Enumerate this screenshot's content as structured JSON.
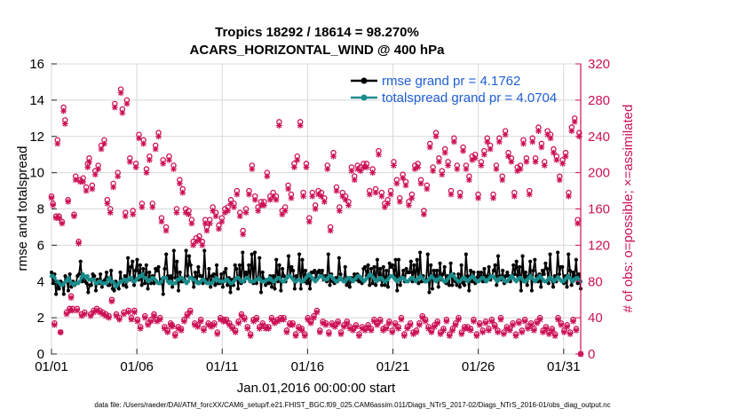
{
  "chart_data": {
    "type": "line",
    "title": "Tropics 18292 / 18614 = 98.270%",
    "subtitle": "ACARS_HORIZONTAL_WIND @ 400 hPa",
    "xlabel": "Jan.01,2016 00:00:00 start",
    "ylabel_left": "rmse and totalspread",
    "ylabel_right": "# of obs: o=possible; ×=assimilated",
    "xlim": [
      0,
      31
    ],
    "ylim_left": [
      0,
      16
    ],
    "ylim_right": [
      0,
      320
    ],
    "x_tick_values": [
      0,
      5,
      10,
      15,
      20,
      25,
      30
    ],
    "x_tick_labels": [
      "01/01",
      "01/06",
      "01/11",
      "01/16",
      "01/21",
      "01/26",
      "01/31"
    ],
    "y_left_ticks": [
      0,
      2,
      4,
      6,
      8,
      10,
      12,
      14,
      16
    ],
    "y_right_ticks": [
      0,
      40,
      80,
      120,
      160,
      200,
      240,
      280,
      320
    ],
    "legend": [
      "rmse grand pr = 4.1762",
      "totalspread grand pr = 4.0704"
    ],
    "colors": {
      "rmse": "#000000",
      "spread": "#1a8c8c",
      "obs": "#cc1155",
      "legend_text": "#1f5fd6"
    },
    "series": [
      {
        "name": "rmse",
        "values": [
          4.5,
          3.9,
          4.4,
          3.3,
          3.9,
          3.6,
          4.0,
          3.9,
          3.3,
          4.3,
          4.1,
          3.5,
          4.4,
          3.7,
          4.0,
          3.8,
          3.9,
          4.3,
          4.4,
          5.1,
          4.0,
          4.3,
          4.0,
          3.9,
          3.4,
          3.8,
          3.8,
          4.4,
          4.3,
          3.5,
          4.1,
          3.9,
          4.4,
          3.7,
          4.0,
          4.1,
          4.5,
          3.8,
          3.8,
          4.6,
          3.6,
          3.5,
          4.0,
          3.8,
          3.6,
          4.5,
          4.0,
          3.8,
          4.3,
          3.7,
          5.3,
          4.1,
          4.8,
          5.1,
          3.8,
          4.6,
          5.2,
          4.1,
          4.9,
          3.8,
          4.7,
          3.9,
          4.9,
          3.6,
          4.5,
          3.9,
          4.3,
          3.9,
          4.7,
          4.6,
          4.8,
          3.9,
          4.1,
          3.3,
          4.7,
          5.5,
          4.3,
          4.1,
          4.3,
          3.7,
          5.7,
          4.2,
          5.1,
          3.5,
          4.5,
          4.0,
          4.0,
          4.1,
          5.7,
          4.3,
          5.4,
          4.9,
          4.2,
          3.7,
          4.5,
          4.0,
          4.8,
          4.3,
          4.3,
          3.9,
          5.7,
          4.1,
          3.9,
          4.7,
          3.7,
          4.3,
          4.4,
          3.8,
          4.9,
          3.9,
          3.9,
          4.4,
          3.7,
          4.5,
          4.7,
          3.8,
          4.2,
          3.4,
          4.1,
          3.8,
          4.9,
          4.7,
          3.6,
          4.9,
          3.9,
          5.6,
          4.0,
          4.5,
          4.2,
          4.9,
          4.0,
          5.5,
          3.9,
          5.6,
          3.9,
          4.2,
          5.3,
          3.4,
          4.5,
          4.1,
          3.8,
          4.1,
          3.9,
          4.3,
          3.7,
          4.3,
          3.6,
          5.2,
          4.0,
          4.9,
          3.5,
          4.7,
          4.3,
          4.0,
          4.2,
          5.4,
          4.3,
          4.8,
          4.6,
          3.6,
          4.3,
          4.1,
          5.5,
          3.6,
          5.2,
          4.0,
          4.6,
          3.9,
          4.2,
          3.6,
          4.5,
          4.5,
          4.6,
          4.2,
          4.5,
          4.6,
          4.3,
          4.6,
          4.1,
          4.3,
          4.0,
          5.5,
          3.8,
          4.4,
          4.0,
          3.9,
          4.2,
          4.0,
          5.3,
          4.4,
          4.1,
          4.0,
          4.8,
          3.8,
          4.1,
          3.7,
          4.2,
          4.1,
          4.4,
          4.1,
          4.4,
          4.0,
          4.0,
          3.9,
          4.7,
          4.8,
          4.3,
          4.9,
          3.8,
          4.7,
          3.9,
          4.8,
          3.8,
          5.2,
          4.1,
          4.7,
          3.8,
          4.8,
          3.8,
          4.6,
          3.7,
          5.0,
          4.8,
          4.9,
          4.3,
          5.2,
          3.5,
          5.2,
          3.8,
          4.2,
          4.6,
          4.0,
          4.7,
          4.5,
          4.5,
          5.1,
          4.0,
          4.9,
          4.1,
          5.2,
          3.9,
          5.6,
          4.0,
          4.3,
          4.0,
          4.1,
          5.5,
          3.4,
          4.9,
          3.6,
          4.6,
          4.1,
          4.6,
          3.7,
          5.0,
          4.1,
          4.4,
          4.8,
          3.9,
          4.3,
          3.8,
          5.0,
          3.8,
          4.4,
          4.0,
          3.8,
          4.4,
          3.7,
          4.9,
          3.9,
          3.8,
          5.5,
          4.3,
          3.5,
          4.6,
          4.0,
          4.5,
          3.9,
          4.2,
          4.5,
          4.2,
          4.5,
          4.0,
          4.7,
          4.0,
          4.3,
          4.8,
          4.1,
          4.3,
          4.6,
          4.9,
          3.8,
          5.4,
          4.3,
          4.1,
          4.6,
          3.9,
          4.3,
          4.5,
          4.3,
          4.0,
          4.3,
          4.9,
          4.4,
          5.1,
          4.3,
          4.8,
          3.5,
          5.4,
          4.0,
          4.5,
          3.8,
          4.3,
          5.1,
          3.5,
          4.6,
          5.2,
          4.3,
          4.0,
          4.4,
          3.7,
          4.6,
          4.4,
          5.0,
          4.7,
          3.9,
          5.5,
          4.1,
          3.7,
          4.3,
          4.0,
          5.6,
          4.4,
          4.8,
          4.8,
          3.9,
          4.3,
          3.7,
          5.5,
          4.6,
          3.8,
          4.5,
          4.3,
          5.2,
          3.9,
          4.4,
          3.6
        ]
      },
      {
        "name": "totalspread",
        "values": [
          4.3,
          4.3,
          4.2,
          4.0,
          4.0,
          3.9,
          3.8,
          3.8,
          3.9,
          4.0,
          4.1,
          4.2,
          4.0,
          3.9,
          3.8,
          3.9,
          3.9,
          3.9,
          4.0,
          4.2,
          4.4,
          4.3,
          4.2,
          4.3,
          4.1,
          4.1,
          4.1,
          4.1,
          3.9,
          3.9,
          4.0,
          4.0,
          3.9,
          3.9,
          3.9,
          3.9,
          4.1,
          4.2,
          4.0,
          4.0,
          3.9,
          3.7,
          3.8,
          3.9,
          4.0,
          4.0,
          4.1,
          4.1,
          4.0,
          4.1,
          4.2,
          4.2,
          4.0,
          4.0,
          4.1,
          4.2,
          4.3,
          4.3,
          4.4,
          4.2,
          4.2,
          4.1,
          4.0,
          4.1,
          4.2,
          4.2,
          4.1,
          4.0,
          3.9,
          3.9,
          4.0,
          4.2,
          4.2,
          4.2,
          4.0,
          3.9,
          4.0,
          3.9,
          3.9,
          3.9,
          4.1,
          4.1,
          4.2,
          4.2,
          4.1,
          4.0,
          3.9,
          4.0,
          4.2,
          4.2,
          4.1,
          4.1,
          4.0,
          3.9,
          3.9,
          4.0,
          4.1,
          4.1,
          4.0,
          3.9,
          3.9,
          3.9,
          3.9,
          4.0,
          4.1,
          4.2,
          4.1,
          4.0,
          4.0,
          4.0,
          4.0,
          4.1,
          4.1,
          4.0,
          3.9,
          3.9,
          4.0,
          4.1,
          4.2,
          4.2,
          4.1,
          4.0,
          4.0,
          4.1,
          4.2,
          4.2,
          4.1,
          4.0,
          4.0,
          4.0,
          4.1,
          4.1,
          4.2,
          4.1,
          4.0,
          4.0,
          4.0,
          4.1,
          4.1,
          4.2,
          4.1,
          4.0,
          4.0,
          4.1,
          4.2,
          4.2,
          4.1,
          4.0,
          4.0,
          4.1,
          4.2,
          4.3,
          4.3,
          4.2,
          4.1,
          4.0,
          4.0,
          4.1,
          4.1,
          4.0,
          4.0,
          4.1,
          4.2,
          4.3,
          4.4,
          4.3,
          4.2,
          4.1,
          4.0,
          4.1,
          4.2,
          4.3,
          4.3,
          4.2,
          4.1,
          4.1,
          4.2,
          4.3,
          4.3,
          4.2,
          4.1,
          4.0,
          4.0,
          4.1,
          4.2,
          4.1,
          4.0,
          4.0,
          4.1,
          4.2,
          4.2,
          4.1,
          4.0,
          4.1,
          4.2,
          4.3,
          4.3,
          4.2,
          4.1,
          4.0,
          4.1,
          4.2,
          4.3,
          4.4,
          4.3,
          4.2,
          4.1,
          4.0,
          4.1,
          4.2,
          4.2,
          4.1,
          4.0,
          4.0,
          4.1,
          4.2,
          4.3,
          4.3,
          4.2,
          4.1,
          4.0,
          4.1,
          4.1,
          4.2,
          4.2,
          4.1,
          4.0,
          4.0,
          4.1,
          4.2,
          4.2,
          4.1,
          4.0,
          4.1,
          4.2,
          4.3,
          4.2,
          4.1,
          4.0,
          4.0,
          4.1,
          4.2,
          4.3,
          4.2,
          4.1,
          4.0,
          4.1,
          4.2,
          4.2,
          4.1,
          4.0,
          4.0,
          4.1,
          4.2,
          4.3,
          4.4,
          4.3,
          4.2,
          4.1,
          4.0,
          4.0,
          4.1,
          4.2,
          4.2,
          4.1,
          4.0,
          4.1,
          4.2,
          4.3,
          4.2,
          4.1,
          4.0,
          4.0,
          4.1,
          4.2,
          4.2,
          4.1,
          4.0,
          4.1,
          4.2,
          4.3,
          4.3,
          4.2,
          4.1,
          4.0,
          4.1,
          4.2,
          4.2,
          4.1,
          4.0,
          4.0,
          4.1,
          4.2,
          4.3,
          4.2,
          4.1,
          4.0,
          4.1,
          4.2,
          4.2,
          4.1,
          4.0,
          4.0,
          4.1,
          4.2,
          4.3,
          4.2,
          4.1,
          4.0,
          4.1,
          4.2,
          4.3,
          4.2,
          4.1,
          4.0,
          4.0,
          4.1,
          4.2,
          4.2,
          4.1,
          4.0,
          4.1,
          4.2,
          4.2,
          4.1,
          4.0,
          4.0,
          4.1,
          4.2,
          4.3,
          4.2,
          4.1,
          4.0,
          4.1,
          4.2,
          4.2,
          4.1,
          4.0
        ]
      }
    ],
    "obs_possible": [
      174,
      166,
      34,
      152,
      236,
      152,
      24,
      146,
      272,
      258,
      46,
      170,
      50,
      64,
      50,
      154,
      196,
      50,
      124,
      192,
      44,
      194,
      46,
      184,
      210,
      216,
      44,
      186,
      48,
      202,
      50,
      208,
      48,
      230,
      46,
      236,
      44,
      170,
      42,
      160,
      60,
      188,
      276,
      44,
      200,
      40,
      292,
      270,
      46,
      156,
      280,
      48,
      216,
      40,
      158,
      48,
      210,
      38,
      242,
      30,
      166,
      236,
      42,
      204,
      34,
      218,
      38,
      166,
      44,
      230,
      38,
      244,
      40,
      150,
      214,
      30,
      140,
      26,
      218,
      34,
      32,
      208,
      22,
      160,
      30,
      192,
      28,
      182,
      38,
      160,
      44,
      158,
      48,
      148,
      124,
      34,
      128,
      32,
      130,
      38,
      124,
      28,
      148,
      140,
      34,
      148,
      32,
      162,
      34,
      156,
      24,
      142,
      40,
      150,
      38,
      160,
      38,
      162,
      34,
      170,
      30,
      166,
      26,
      180,
      36,
      156,
      44,
      136,
      40,
      160,
      30,
      180,
      22,
      208,
      38,
      174,
      40,
      162,
      30,
      168,
      34,
      168,
      30,
      200,
      30,
      174,
      40,
      178,
      36,
      174,
      38,
      256,
      40,
      158,
      40,
      162,
      26,
      186,
      34,
      176,
      34,
      210,
      22,
      218,
      30,
      256,
      28,
      178,
      22,
      210,
      40,
      150,
      36,
      178,
      42,
      164,
      48,
      180,
      26,
      178,
      36,
      172,
      34,
      208,
      24,
      140,
      34,
      222,
      32,
      184,
      36,
      162,
      24,
      178,
      32,
      174,
      36,
      168,
      30,
      206,
      28,
      196,
      32,
      208,
      22,
      206,
      30,
      210,
      28,
      210,
      32,
      180,
      28,
      204,
      38,
      182,
      34,
      224,
      38,
      178,
      28,
      166,
      30,
      170,
      36,
      180,
      26,
      212,
      34,
      192,
      30,
      172,
      40,
      198,
      22,
      190,
      30,
      168,
      34,
      176,
      24,
      208,
      26,
      210,
      34,
      192,
      42,
      158,
      38,
      186,
      30,
      232,
      26,
      206,
      32,
      244,
      36,
      216,
      24,
      202,
      28,
      226,
      38,
      212,
      22,
      180,
      28,
      238,
      34,
      208,
      40,
      178,
      24,
      228,
      30,
      208,
      30,
      196,
      28,
      218,
      38,
      220,
      22,
      176,
      34,
      212,
      26,
      224,
      36,
      238,
      28,
      230,
      38,
      176,
      32,
      208,
      26,
      238,
      40,
      196,
      24,
      246,
      30,
      222,
      28,
      216,
      34,
      178,
      22,
      206,
      36,
      208,
      26,
      236,
      38,
      216,
      30,
      180,
      34,
      238,
      28,
      216,
      36,
      250,
      40,
      232,
      26,
      212,
      30,
      246,
      24,
      242,
      28,
      226,
      22,
      218,
      40,
      196,
      34,
      214,
      26,
      222,
      32,
      178,
      24,
      250,
      38,
      260,
      28,
      148,
      244,
      0
    ],
    "obs_assimilated": [
      172,
      164,
      32,
      150,
      232,
      150,
      24,
      144,
      268,
      254,
      44,
      168,
      48,
      62,
      48,
      152,
      192,
      48,
      122,
      190,
      42,
      190,
      44,
      180,
      206,
      212,
      42,
      182,
      46,
      198,
      48,
      204,
      46,
      226,
      44,
      232,
      42,
      166,
      40,
      156,
      58,
      184,
      272,
      42,
      196,
      38,
      288,
      266,
      44,
      152,
      276,
      46,
      212,
      38,
      154,
      46,
      206,
      36,
      238,
      28,
      162,
      232,
      40,
      200,
      32,
      214,
      36,
      162,
      42,
      226,
      36,
      240,
      38,
      146,
      210,
      28,
      136,
      24,
      214,
      32,
      30,
      204,
      20,
      156,
      28,
      188,
      26,
      178,
      36,
      156,
      42,
      154,
      46,
      144,
      120,
      32,
      124,
      30,
      126,
      36,
      120,
      26,
      144,
      136,
      32,
      144,
      30,
      158,
      32,
      152,
      22,
      138,
      38,
      146,
      36,
      156,
      36,
      158,
      32,
      166,
      28,
      162,
      24,
      176,
      34,
      152,
      42,
      132,
      38,
      156,
      28,
      176,
      20,
      204,
      36,
      170,
      38,
      158,
      28,
      164,
      32,
      164,
      28,
      196,
      28,
      170,
      38,
      174,
      34,
      170,
      36,
      252,
      38,
      154,
      38,
      158,
      24,
      182,
      32,
      172,
      32,
      206,
      20,
      214,
      28,
      252,
      26,
      174,
      20,
      206,
      38,
      146,
      34,
      174,
      40,
      160,
      46,
      176,
      24,
      174,
      34,
      168,
      32,
      204,
      22,
      136,
      32,
      218,
      30,
      180,
      34,
      158,
      22,
      174,
      30,
      170,
      34,
      164,
      28,
      202,
      26,
      192,
      30,
      204,
      20,
      202,
      28,
      206,
      26,
      206,
      30,
      176,
      26,
      200,
      36,
      178,
      32,
      220,
      36,
      174,
      26,
      162,
      28,
      166,
      34,
      176,
      24,
      208,
      32,
      188,
      28,
      168,
      38,
      194,
      20,
      186,
      28,
      164,
      32,
      172,
      22,
      204,
      24,
      206,
      32,
      188,
      40,
      154,
      36,
      182,
      28,
      228,
      24,
      202,
      30,
      240,
      34,
      212,
      22,
      198,
      26,
      222,
      36,
      208,
      20,
      176,
      26,
      234,
      32,
      204,
      38,
      174,
      22,
      224,
      28,
      204,
      28,
      192,
      26,
      214,
      36,
      216,
      20,
      172,
      32,
      208,
      24,
      220,
      34,
      234,
      26,
      226,
      36,
      172,
      30,
      204,
      24,
      234,
      38,
      192,
      22,
      242,
      28,
      218,
      26,
      212,
      32,
      174,
      20,
      202,
      34,
      204,
      24,
      232,
      36,
      212,
      28,
      176,
      32,
      234,
      26,
      212,
      34,
      246,
      38,
      228,
      24,
      208,
      28,
      242,
      22,
      238,
      26,
      222,
      20,
      214,
      38,
      192,
      32,
      210,
      24,
      218,
      30,
      174,
      22,
      246,
      36,
      256,
      26,
      144,
      240,
      0
    ]
  },
  "footer": {
    "datafile": "data file: /Users/raeder/DAI/ATM_forcXX/CAM6_setup/f.e21.FHIST_BGC.f09_025.CAM6assim.011/Diags_NTrS_2017-02/Diags_NTrS_2016-01/obs_diag_output.nc"
  }
}
